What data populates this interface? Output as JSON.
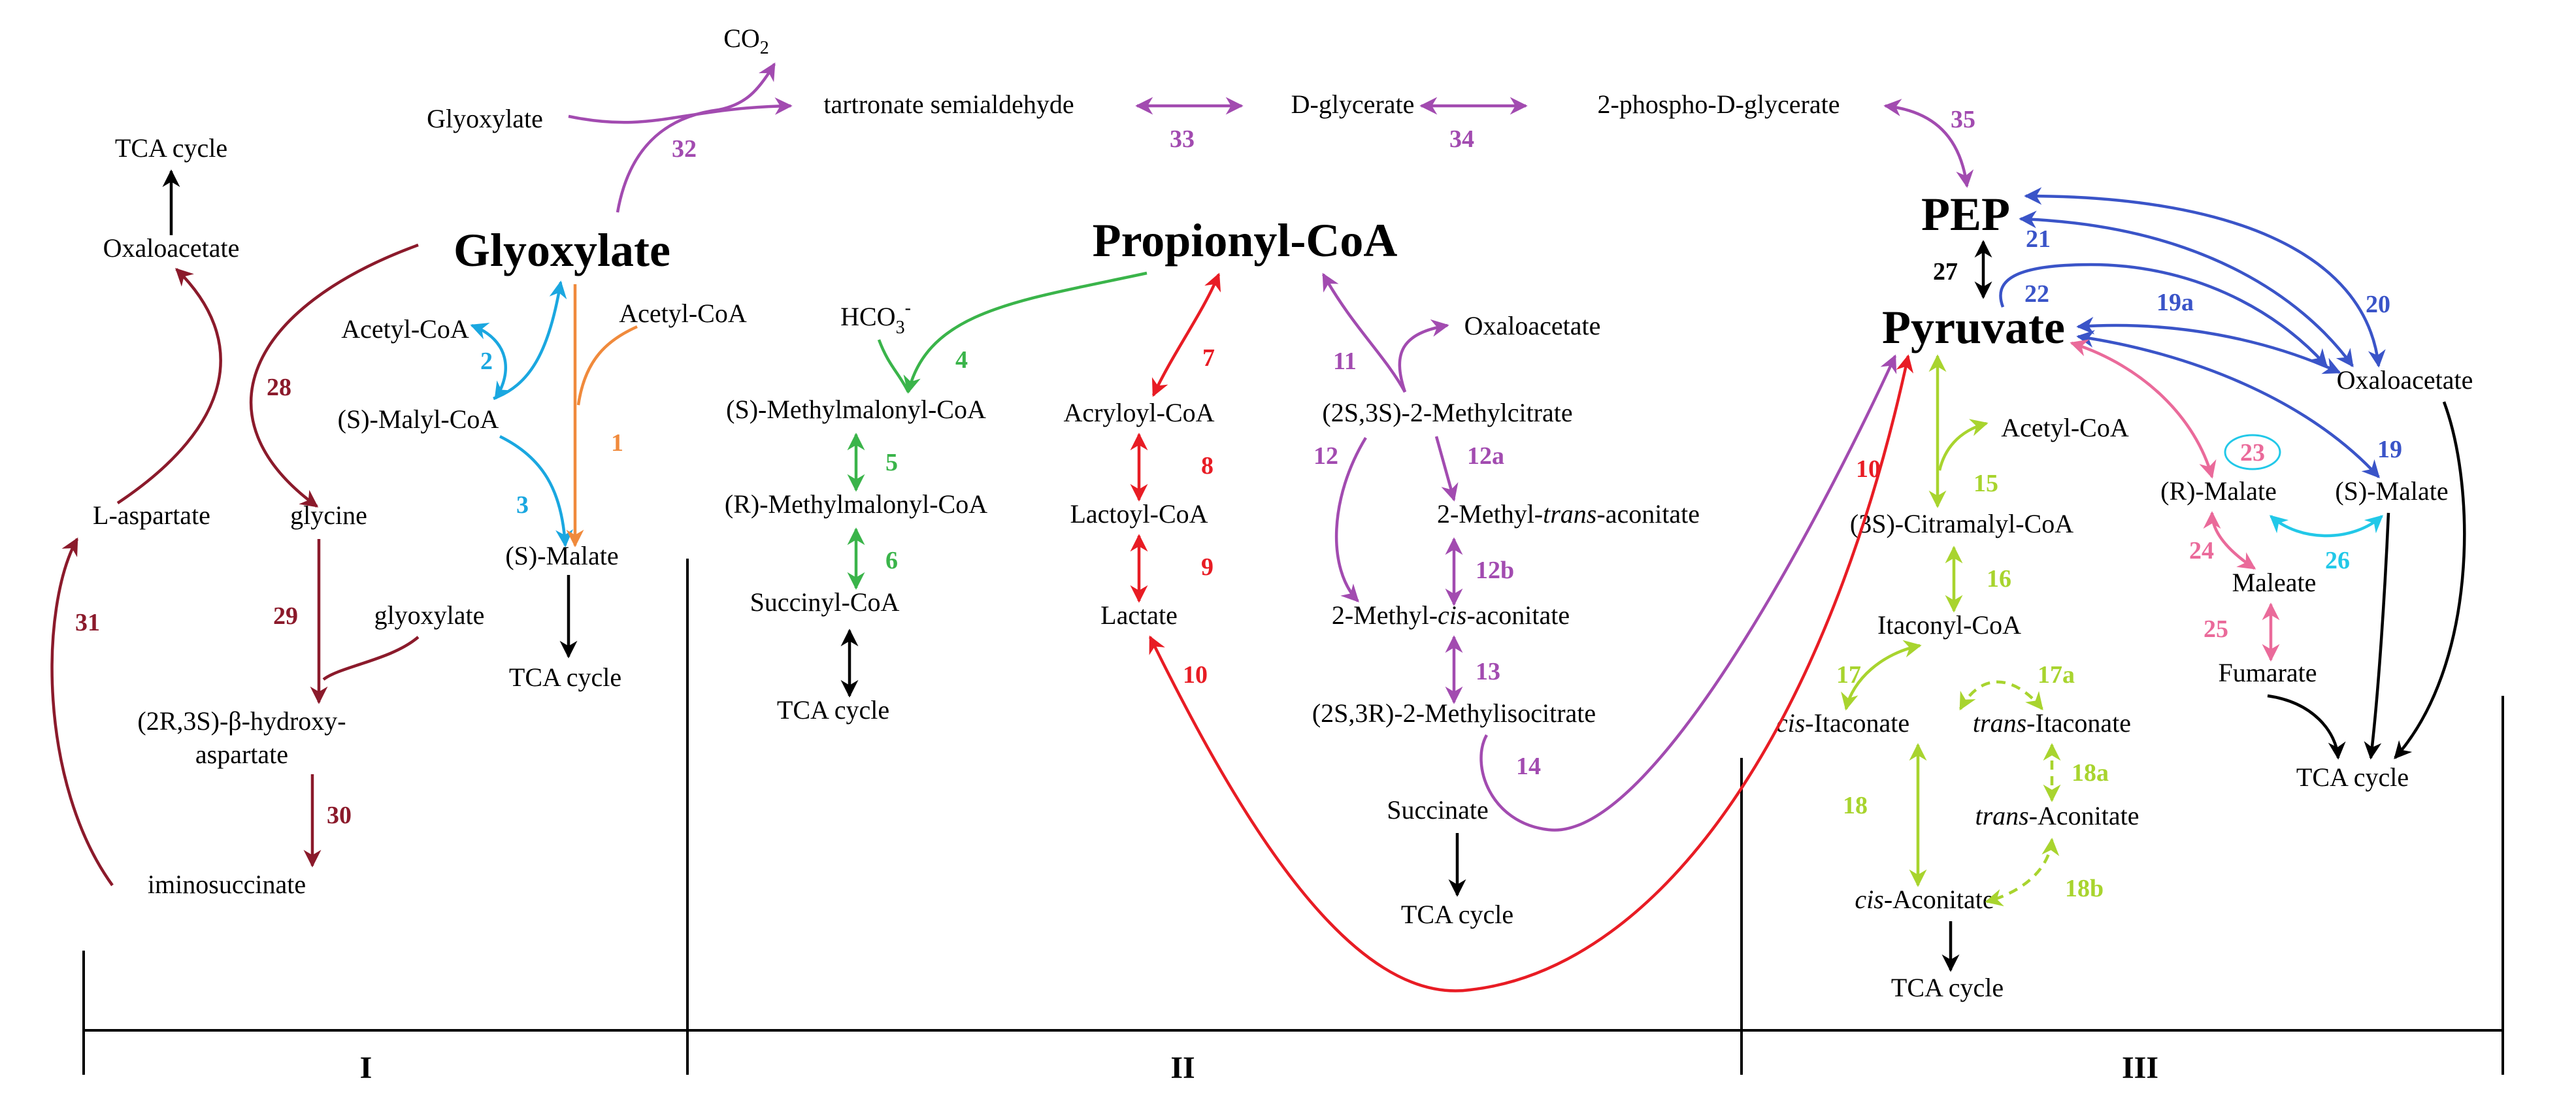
{
  "colors": {
    "maroon": "#8b1a2b",
    "purple": "#a24bb0",
    "cyan": "#1aa7e0",
    "orange": "#f08a3c",
    "green": "#3ab44a",
    "red": "#e81c24",
    "lime": "#a8d42e",
    "blue": "#3a54c8",
    "pink": "#ea6a9a",
    "aqua": "#22c8e8",
    "black": "#000000"
  },
  "sections": [
    "I",
    "II",
    "III"
  ],
  "hubs": {
    "glyoxylate": "Glyoxylate",
    "propionyl_coa": "Propionyl-CoA",
    "pep": "PEP",
    "pyruvate": "Pyruvate"
  },
  "metabolites": {
    "co2": "CO",
    "co2_sub": "2",
    "glyoxylate_top": "Glyoxylate",
    "tartronate": "tartronate semialdehyde",
    "d_glycerate": "D-glycerate",
    "phospho_glycerate": "2-phospho-D-glycerate",
    "tca_1": "TCA cycle",
    "oaa_1": "Oxaloacetate",
    "acetyl_coa_1": "Acetyl-CoA",
    "acetyl_coa_2": "Acetyl-CoA",
    "malyl_coa": "(S)-Malyl-CoA",
    "l_aspartate": "L-aspartate",
    "glycine": "glycine",
    "s_malate_1": "(S)-Malate",
    "glyoxylate_small": "glyoxylate",
    "tca_2": "TCA cycle",
    "hydroxyaspartate_1": "(2R,3S)-β-hydroxy-",
    "hydroxyaspartate_2": "aspartate",
    "iminosuccinate": "iminosuccinate",
    "hco3": "HCO",
    "hco3_sub": "3",
    "hco3_sup": "-",
    "s_mm_coa": "(S)-Methylmalonyl-CoA",
    "r_mm_coa": "(R)-Methylmalonyl-CoA",
    "succinyl_coa": "Succinyl-CoA",
    "tca_3": "TCA cycle",
    "acryloyl_coa": "Acryloyl-CoA",
    "lactoyl_coa": "Lactoyl-CoA",
    "lactate": "Lactate",
    "oaa_2": "Oxaloacetate",
    "methylcitrate": "(2S,3S)-2-Methylcitrate",
    "trans_acon_pre": "2-Methyl-",
    "trans_acon_it": "trans",
    "trans_acon_post": "-aconitate",
    "cis_acon_pre": "2-Methyl-",
    "cis_acon_it": "cis",
    "cis_acon_post": "-aconitate",
    "methylisocitrate": "(2S,3R)-2-Methylisocitrate",
    "succinate": "Succinate",
    "tca_4": "TCA cycle",
    "acetyl_coa_3": "Acetyl-CoA",
    "citramalyl_coa": "(3S)-Citramalyl-CoA",
    "itaconyl_coa": "Itaconyl-CoA",
    "cis_itaconate_it": "cis",
    "cis_itaconate_post": "-Itaconate",
    "trans_itaconate_it": "trans",
    "trans_itaconate_post": "-Itaconate",
    "trans_aconitate_it": "trans",
    "trans_aconitate_post": "-Aconitate",
    "cis_aconitate_it": "cis",
    "cis_aconitate_post": "-Aconitate",
    "tca_5": "TCA cycle",
    "oaa_3": "Oxaloacetate",
    "r_malate": "(R)-Malate",
    "s_malate_2": "(S)-Malate",
    "maleate": "Maleate",
    "fumarate": "Fumarate",
    "tca_6": "TCA cycle"
  },
  "reactions": {
    "r1": "1",
    "r2": "2",
    "r3": "3",
    "r4": "4",
    "r5": "5",
    "r6": "6",
    "r7": "7",
    "r8": "8",
    "r9": "9",
    "r10a": "10",
    "r10b": "10",
    "r11": "11",
    "r12": "12",
    "r12a": "12a",
    "r12b": "12b",
    "r13": "13",
    "r14": "14",
    "r15": "15",
    "r16": "16",
    "r17": "17",
    "r17a": "17a",
    "r18": "18",
    "r18a": "18a",
    "r18b": "18b",
    "r19": "19",
    "r19a": "19a",
    "r20": "20",
    "r21": "21",
    "r22": "22",
    "r23": "23",
    "r24": "24",
    "r25": "25",
    "r26": "26",
    "r27": "27",
    "r28": "28",
    "r29": "29",
    "r30": "30",
    "r31": "31",
    "r32": "32",
    "r33": "33",
    "r34": "34",
    "r35": "35"
  }
}
